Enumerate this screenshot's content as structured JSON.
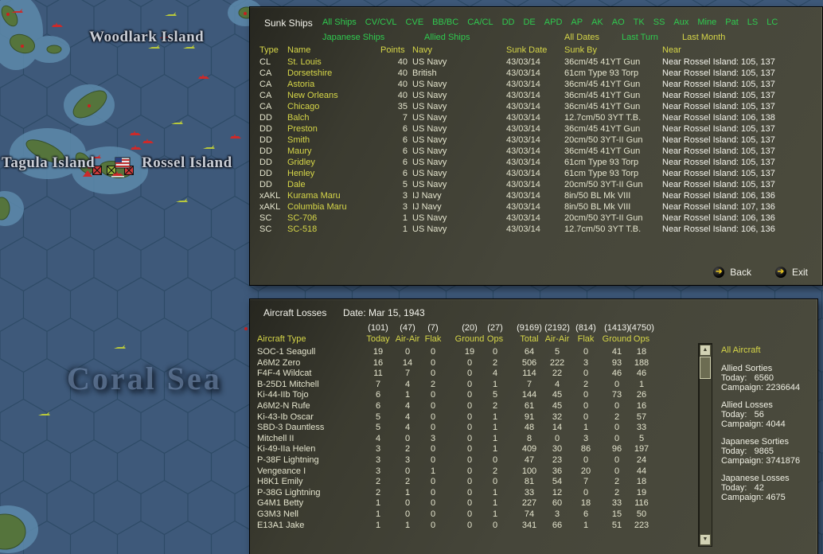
{
  "colors": {
    "accent_green": "#2fca4f",
    "accent_yellow": "#d6d648",
    "value_cream": "#e4e4cd",
    "text_white": "#f4f4ec",
    "sea": "#3e597a",
    "panel": "#46463a"
  },
  "map": {
    "labels": {
      "woodlark": "Woodlark Island",
      "tagula": "Tagula Island",
      "rossel": "Rossel Island",
      "coral_sea": "Coral Sea"
    }
  },
  "sunk_ships": {
    "title": "Sunk Ships",
    "filters_row1": [
      "All Ships",
      "CV/CVL",
      "CVE",
      "BB/BC",
      "CA/CL",
      "DD",
      "DE",
      "APD",
      "AP",
      "AK",
      "AO",
      "TK",
      "SS",
      "Aux",
      "Mine",
      "Pat",
      "LS",
      "LC"
    ],
    "filters_row2": [
      {
        "label": "Japanese Ships",
        "color": "green"
      },
      {
        "label": "Allied Ships",
        "color": "green"
      },
      {
        "label": "All Dates",
        "color": "yellow"
      },
      {
        "label": "Last Turn",
        "color": "green"
      },
      {
        "label": "Last Month",
        "color": "yellow"
      }
    ],
    "columns": {
      "type": "Type",
      "name": "Name",
      "points": "Points",
      "navy": "Navy",
      "sunk_date": "Sunk Date",
      "sunk_by": "Sunk By",
      "near": "Near"
    },
    "rows": [
      {
        "type": "CL",
        "name": "St. Louis",
        "points": "40",
        "navy": "US Navy",
        "sunk_date": "43/03/14",
        "sunk_by": "36cm/45 41YT Gun",
        "near": "Near Rossel Island: 105, 137"
      },
      {
        "type": "CA",
        "name": "Dorsetshire",
        "points": "40",
        "navy": "British",
        "sunk_date": "43/03/14",
        "sunk_by": "61cm Type 93 Torp",
        "near": "Near Rossel Island: 105, 137"
      },
      {
        "type": "CA",
        "name": "Astoria",
        "points": "40",
        "navy": "US Navy",
        "sunk_date": "43/03/14",
        "sunk_by": "36cm/45 41YT Gun",
        "near": "Near Rossel Island: 105, 137"
      },
      {
        "type": "CA",
        "name": "New Orleans",
        "points": "40",
        "navy": "US Navy",
        "sunk_date": "43/03/14",
        "sunk_by": "36cm/45 41YT Gun",
        "near": "Near Rossel Island: 105, 137"
      },
      {
        "type": "CA",
        "name": "Chicago",
        "points": "35",
        "navy": "US Navy",
        "sunk_date": "43/03/14",
        "sunk_by": "36cm/45 41YT Gun",
        "near": "Near Rossel Island: 105, 137"
      },
      {
        "type": "DD",
        "name": "Balch",
        "points": "7",
        "navy": "US Navy",
        "sunk_date": "43/03/14",
        "sunk_by": "12.7cm/50 3YT T.B.",
        "near": "Near Rossel Island: 106, 138"
      },
      {
        "type": "DD",
        "name": "Preston",
        "points": "6",
        "navy": "US Navy",
        "sunk_date": "43/03/14",
        "sunk_by": "36cm/45 41YT Gun",
        "near": "Near Rossel Island: 105, 137"
      },
      {
        "type": "DD",
        "name": "Smith",
        "points": "6",
        "navy": "US Navy",
        "sunk_date": "43/03/14",
        "sunk_by": "20cm/50 3YT-II Gun",
        "near": "Near Rossel Island: 105, 137"
      },
      {
        "type": "DD",
        "name": "Maury",
        "points": "6",
        "navy": "US Navy",
        "sunk_date": "43/03/14",
        "sunk_by": "36cm/45 41YT Gun",
        "near": "Near Rossel Island: 105, 137"
      },
      {
        "type": "DD",
        "name": "Gridley",
        "points": "6",
        "navy": "US Navy",
        "sunk_date": "43/03/14",
        "sunk_by": "61cm Type 93 Torp",
        "near": "Near Rossel Island: 105, 137"
      },
      {
        "type": "DD",
        "name": "Henley",
        "points": "6",
        "navy": "US Navy",
        "sunk_date": "43/03/14",
        "sunk_by": "61cm Type 93 Torp",
        "near": "Near Rossel Island: 105, 137"
      },
      {
        "type": "DD",
        "name": "Dale",
        "points": "5",
        "navy": "US Navy",
        "sunk_date": "43/03/14",
        "sunk_by": "20cm/50 3YT-II Gun",
        "near": "Near Rossel Island: 105, 137"
      },
      {
        "type": "xAKL",
        "name": "Kurama Maru",
        "points": "3",
        "navy": "IJ Navy",
        "sunk_date": "43/03/14",
        "sunk_by": "8in/50 BL Mk VIII",
        "near": "Near Rossel Island: 106, 136"
      },
      {
        "type": "xAKL",
        "name": "Columbia Maru",
        "points": "3",
        "navy": "IJ Navy",
        "sunk_date": "43/03/14",
        "sunk_by": "8in/50 BL Mk VIII",
        "near": "Near Rossel Island: 107, 136"
      },
      {
        "type": "SC",
        "name": "SC-706",
        "points": "1",
        "navy": "US Navy",
        "sunk_date": "43/03/14",
        "sunk_by": "20cm/50 3YT-II Gun",
        "near": "Near Rossel Island: 106, 136"
      },
      {
        "type": "SC",
        "name": "SC-518",
        "points": "1",
        "navy": "US Navy",
        "sunk_date": "43/03/14",
        "sunk_by": "12.7cm/50 3YT T.B.",
        "near": "Near Rossel Island: 106, 136"
      }
    ],
    "back_label": "Back",
    "exit_label": "Exit",
    "button_icon": "➔"
  },
  "aircraft_losses": {
    "title": "Aircraft Losses",
    "date_label": "Date: Mar 15, 1943",
    "type_header": "Aircraft Type",
    "col_counts": [
      "(101)",
      "(47)",
      "(7)",
      "(20)",
      "(27)",
      "(9169)",
      "(2192)",
      "(814)",
      "(1413)",
      "(4750)"
    ],
    "col_labels": [
      "Today",
      "Air-Air",
      "Flak",
      "Ground",
      "Ops",
      "Total",
      "Air-Air",
      "Flak",
      "Ground",
      "Ops"
    ],
    "rows": [
      [
        "SOC-1 Seagull",
        "19",
        "0",
        "0",
        "19",
        "0",
        "64",
        "5",
        "0",
        "41",
        "18"
      ],
      [
        "A6M2 Zero",
        "16",
        "14",
        "0",
        "0",
        "2",
        "506",
        "222",
        "3",
        "93",
        "188"
      ],
      [
        "F4F-4 Wildcat",
        "11",
        "7",
        "0",
        "0",
        "4",
        "114",
        "22",
        "0",
        "46",
        "46"
      ],
      [
        "B-25D1 Mitchell",
        "7",
        "4",
        "2",
        "0",
        "1",
        "7",
        "4",
        "2",
        "0",
        "1"
      ],
      [
        "Ki-44-IIb Tojo",
        "6",
        "1",
        "0",
        "0",
        "5",
        "144",
        "45",
        "0",
        "73",
        "26"
      ],
      [
        "A6M2-N Rufe",
        "6",
        "4",
        "0",
        "0",
        "2",
        "61",
        "45",
        "0",
        "0",
        "16"
      ],
      [
        "Ki-43-Ib Oscar",
        "5",
        "4",
        "0",
        "0",
        "1",
        "91",
        "32",
        "0",
        "2",
        "57"
      ],
      [
        "SBD-3 Dauntless",
        "5",
        "4",
        "0",
        "0",
        "1",
        "48",
        "14",
        "1",
        "0",
        "33"
      ],
      [
        "Mitchell II",
        "4",
        "0",
        "3",
        "0",
        "1",
        "8",
        "0",
        "3",
        "0",
        "5"
      ],
      [
        "Ki-49-IIa Helen",
        "3",
        "2",
        "0",
        "0",
        "1",
        "409",
        "30",
        "86",
        "96",
        "197"
      ],
      [
        "P-38F Lightning",
        "3",
        "3",
        "0",
        "0",
        "0",
        "47",
        "23",
        "0",
        "0",
        "24"
      ],
      [
        "Vengeance I",
        "3",
        "0",
        "1",
        "0",
        "2",
        "100",
        "36",
        "20",
        "0",
        "44"
      ],
      [
        "H8K1 Emily",
        "2",
        "2",
        "0",
        "0",
        "0",
        "81",
        "54",
        "7",
        "2",
        "18"
      ],
      [
        "P-38G Lightning",
        "2",
        "1",
        "0",
        "0",
        "1",
        "33",
        "12",
        "0",
        "2",
        "19"
      ],
      [
        "G4M1 Betty",
        "1",
        "0",
        "0",
        "0",
        "1",
        "227",
        "60",
        "18",
        "33",
        "116"
      ],
      [
        "G3M3 Nell",
        "1",
        "0",
        "0",
        "0",
        "1",
        "74",
        "3",
        "6",
        "15",
        "50"
      ],
      [
        "E13A1 Jake",
        "1",
        "1",
        "0",
        "0",
        "0",
        "341",
        "66",
        "1",
        "51",
        "223"
      ]
    ],
    "scrollbar": {
      "up": "▲",
      "down": "▼"
    },
    "summary": {
      "title": "All Aircraft",
      "sections": [
        {
          "name": "Allied Sorties",
          "today": "Today:   6560",
          "campaign": "Campaign: 2236644"
        },
        {
          "name": "Allied Losses",
          "today": "Today:   56",
          "campaign": "Campaign: 4044"
        },
        {
          "name": "Japanese Sorties",
          "today": "Today:   9865",
          "campaign": "Campaign: 3741876"
        },
        {
          "name": "Japanese Losses",
          "today": "Today:   42",
          "campaign": "Campaign: 4675"
        }
      ]
    }
  }
}
